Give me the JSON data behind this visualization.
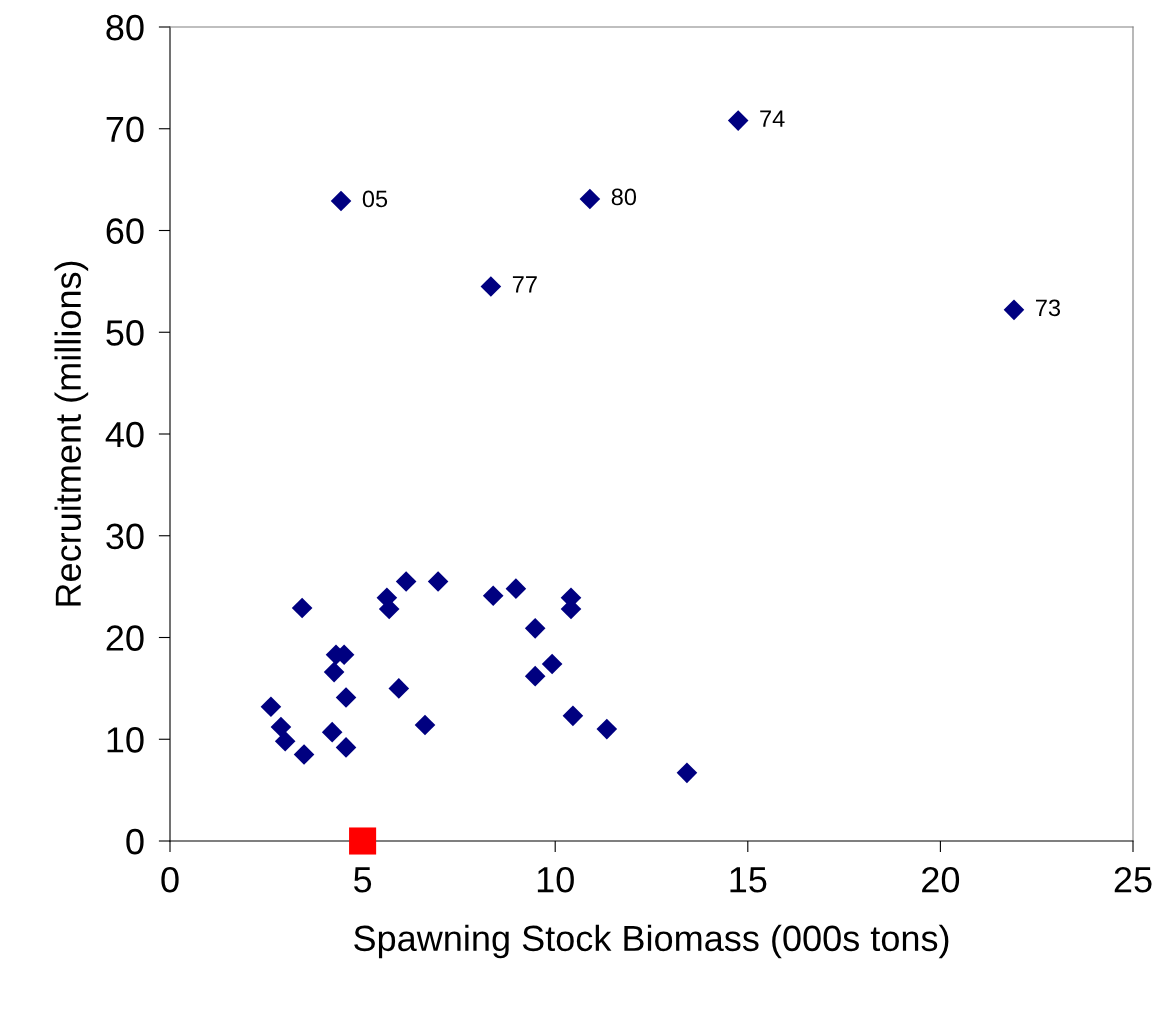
{
  "chart_data": {
    "type": "scatter",
    "xlabel": "Spawning Stock Biomass (000s tons)",
    "ylabel": "Recruitment (millions)",
    "xlim": [
      0,
      25
    ],
    "ylim": [
      0,
      80
    ],
    "xticks": [
      0,
      5,
      10,
      15,
      20,
      25
    ],
    "yticks": [
      0,
      10,
      20,
      30,
      40,
      50,
      60,
      70,
      80
    ],
    "grid": false,
    "legend": false,
    "series": [
      {
        "color": "#000080",
        "marker": "diamond",
        "x": [
          2.62,
          2.88,
          2.99,
          3.48,
          3.43,
          4.21,
          4.26,
          4.31,
          4.52,
          4.57,
          4.57,
          5.63,
          5.69,
          5.94,
          6.13,
          6.62,
          6.96,
          8.39,
          8.98,
          9.48,
          9.48,
          9.92,
          10.41,
          10.41,
          10.46,
          10.48,
          11.34,
          13.42,
          4.44,
          8.33,
          10.9,
          14.75,
          21.91
        ],
        "values": [
          13.2,
          11.2,
          9.8,
          8.5,
          22.9,
          10.7,
          16.6,
          18.3,
          18.3,
          14.1,
          9.2,
          23.9,
          22.8,
          15.0,
          25.5,
          11.4,
          25.5,
          24.1,
          24.8,
          20.9,
          16.2,
          17.4,
          23.9,
          22.8,
          12.3,
          null,
          11.0,
          6.7,
          62.9,
          54.5,
          63.1,
          70.8,
          52.2
        ]
      },
      {
        "color": "#ff0000",
        "marker": "square",
        "x": [
          5
        ],
        "values": [
          0
        ]
      }
    ],
    "annotations": [
      {
        "text": "05",
        "x": 4.44,
        "y": 62.9
      },
      {
        "text": "77",
        "x": 8.33,
        "y": 54.5
      },
      {
        "text": "80",
        "x": 10.9,
        "y": 63.1
      },
      {
        "text": "74",
        "x": 14.75,
        "y": 70.8
      },
      {
        "text": "73",
        "x": 21.91,
        "y": 52.2
      }
    ]
  }
}
